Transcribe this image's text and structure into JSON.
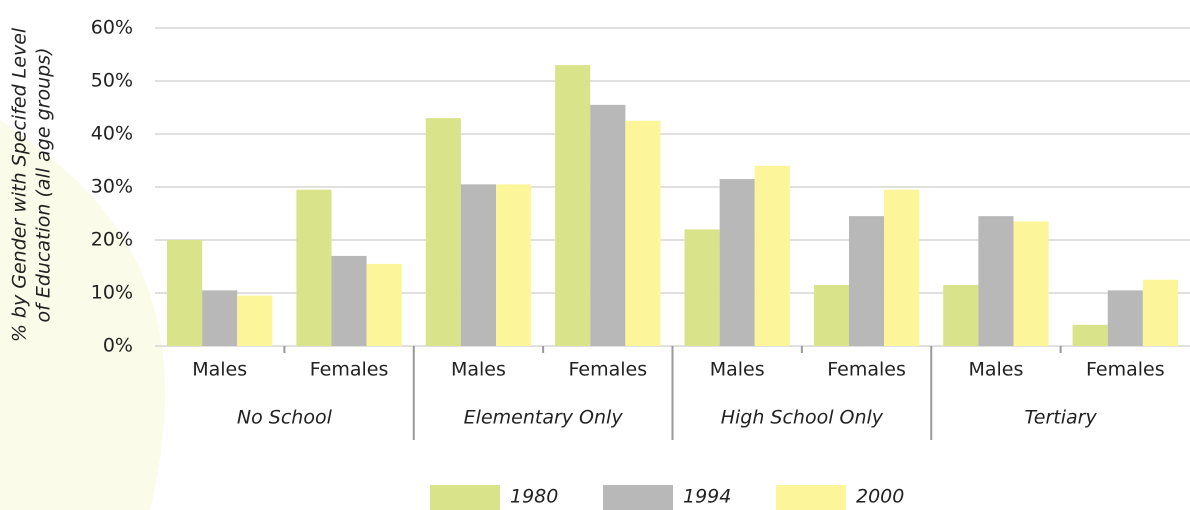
{
  "chart_data": {
    "type": "bar",
    "ylabel": [
      "% by Gender with Specifed Level",
      "of Education (all age groups)"
    ],
    "categories": [
      "Males",
      "Females",
      "Males",
      "Females",
      "Males",
      "Females",
      "Males",
      "Females"
    ],
    "groups": [
      "No School",
      "Elementary Only",
      "High School Only",
      "Tertiary"
    ],
    "series": [
      {
        "name": "1980",
        "color": "#d9e38a",
        "values": [
          20,
          29.5,
          43,
          53,
          22,
          11.5,
          11.5,
          4
        ]
      },
      {
        "name": "1994",
        "color": "#b8b8b8",
        "values": [
          10.5,
          17,
          30.5,
          45.5,
          31.5,
          24.5,
          24.5,
          10.5
        ]
      },
      {
        "name": "2000",
        "color": "#fdf59a",
        "values": [
          9.5,
          15.5,
          30.5,
          42.5,
          34,
          29.5,
          23.5,
          12.5
        ]
      }
    ],
    "ylim": [
      0,
      60
    ],
    "yticks": [
      {
        "value": 0,
        "label": "0%"
      },
      {
        "value": 10,
        "label": "10%"
      },
      {
        "value": 20,
        "label": "20%"
      },
      {
        "value": 30,
        "label": "30%"
      },
      {
        "value": 40,
        "label": "40%"
      },
      {
        "value": 50,
        "label": "50%"
      },
      {
        "value": 60,
        "label": "60%"
      }
    ],
    "grid": true
  }
}
